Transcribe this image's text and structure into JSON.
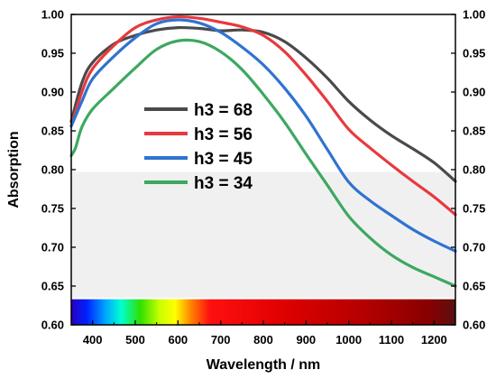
{
  "chart_data": {
    "type": "line",
    "title": "",
    "xlabel": "Wavelength / nm",
    "ylabel": "Absorption",
    "xlim": [
      350,
      1250
    ],
    "ylim": [
      0.6,
      1.0
    ],
    "x_ticks": [
      400,
      500,
      600,
      700,
      800,
      900,
      1000,
      1100,
      1200
    ],
    "x_tick_labels": [
      "400",
      "500",
      "600",
      "700",
      "800",
      "900",
      "1000",
      "1100",
      "1200"
    ],
    "y_ticks": [
      0.6,
      0.65,
      0.7,
      0.75,
      0.8,
      0.85,
      0.9,
      0.95,
      1.0
    ],
    "y_tick_labels": [
      "0.60",
      "0.65",
      "0.70",
      "0.75",
      "0.80",
      "0.85",
      "0.90",
      "0.95",
      "1.00"
    ],
    "right_axis_mirrored": true,
    "shaded_band": {
      "y_range": [
        0.635,
        0.797
      ],
      "color": "#f0f0f0"
    },
    "spectrum_bar": {
      "x_range": [
        350,
        1250
      ],
      "y_range": [
        0.6,
        0.633
      ]
    },
    "legend": {
      "placement": "center-left",
      "entries": [
        "h3 = 68",
        "h3 = 56",
        "h3 = 45",
        "h3 = 34"
      ]
    },
    "series": [
      {
        "name": "h3 = 68",
        "color": "#4a4a4a",
        "points": [
          [
            350,
            0.862
          ],
          [
            375,
            0.912
          ],
          [
            400,
            0.938
          ],
          [
            450,
            0.962
          ],
          [
            500,
            0.973
          ],
          [
            550,
            0.98
          ],
          [
            600,
            0.983
          ],
          [
            650,
            0.982
          ],
          [
            700,
            0.979
          ],
          [
            750,
            0.98
          ],
          [
            800,
            0.977
          ],
          [
            850,
            0.965
          ],
          [
            900,
            0.944
          ],
          [
            950,
            0.918
          ],
          [
            1000,
            0.888
          ],
          [
            1050,
            0.864
          ],
          [
            1100,
            0.844
          ],
          [
            1150,
            0.827
          ],
          [
            1200,
            0.809
          ],
          [
            1250,
            0.785
          ]
        ]
      },
      {
        "name": "h3 = 56",
        "color": "#e8393e",
        "points": [
          [
            350,
            0.856
          ],
          [
            375,
            0.9
          ],
          [
            400,
            0.93
          ],
          [
            450,
            0.96
          ],
          [
            500,
            0.983
          ],
          [
            550,
            0.993
          ],
          [
            600,
            0.997
          ],
          [
            650,
            0.995
          ],
          [
            700,
            0.99
          ],
          [
            750,
            0.984
          ],
          [
            800,
            0.973
          ],
          [
            850,
            0.952
          ],
          [
            900,
            0.922
          ],
          [
            950,
            0.888
          ],
          [
            1000,
            0.852
          ],
          [
            1050,
            0.828
          ],
          [
            1100,
            0.806
          ],
          [
            1150,
            0.785
          ],
          [
            1200,
            0.765
          ],
          [
            1250,
            0.742
          ]
        ]
      },
      {
        "name": "h3 = 45",
        "color": "#2f73d0",
        "points": [
          [
            350,
            0.856
          ],
          [
            375,
            0.888
          ],
          [
            400,
            0.917
          ],
          [
            450,
            0.946
          ],
          [
            500,
            0.97
          ],
          [
            550,
            0.988
          ],
          [
            600,
            0.993
          ],
          [
            650,
            0.989
          ],
          [
            700,
            0.977
          ],
          [
            750,
            0.958
          ],
          [
            800,
            0.935
          ],
          [
            850,
            0.905
          ],
          [
            900,
            0.869
          ],
          [
            950,
            0.826
          ],
          [
            1000,
            0.784
          ],
          [
            1050,
            0.76
          ],
          [
            1100,
            0.741
          ],
          [
            1150,
            0.723
          ],
          [
            1200,
            0.708
          ],
          [
            1250,
            0.695
          ]
        ]
      },
      {
        "name": "h3 = 34",
        "color": "#3da860",
        "points": [
          [
            350,
            0.818
          ],
          [
            360,
            0.828
          ],
          [
            375,
            0.855
          ],
          [
            400,
            0.878
          ],
          [
            450,
            0.905
          ],
          [
            500,
            0.931
          ],
          [
            550,
            0.955
          ],
          [
            600,
            0.966
          ],
          [
            650,
            0.965
          ],
          [
            700,
            0.952
          ],
          [
            750,
            0.929
          ],
          [
            800,
            0.897
          ],
          [
            850,
            0.861
          ],
          [
            900,
            0.82
          ],
          [
            950,
            0.78
          ],
          [
            1000,
            0.74
          ],
          [
            1050,
            0.712
          ],
          [
            1100,
            0.69
          ],
          [
            1150,
            0.674
          ],
          [
            1200,
            0.662
          ],
          [
            1250,
            0.65
          ]
        ]
      }
    ]
  }
}
